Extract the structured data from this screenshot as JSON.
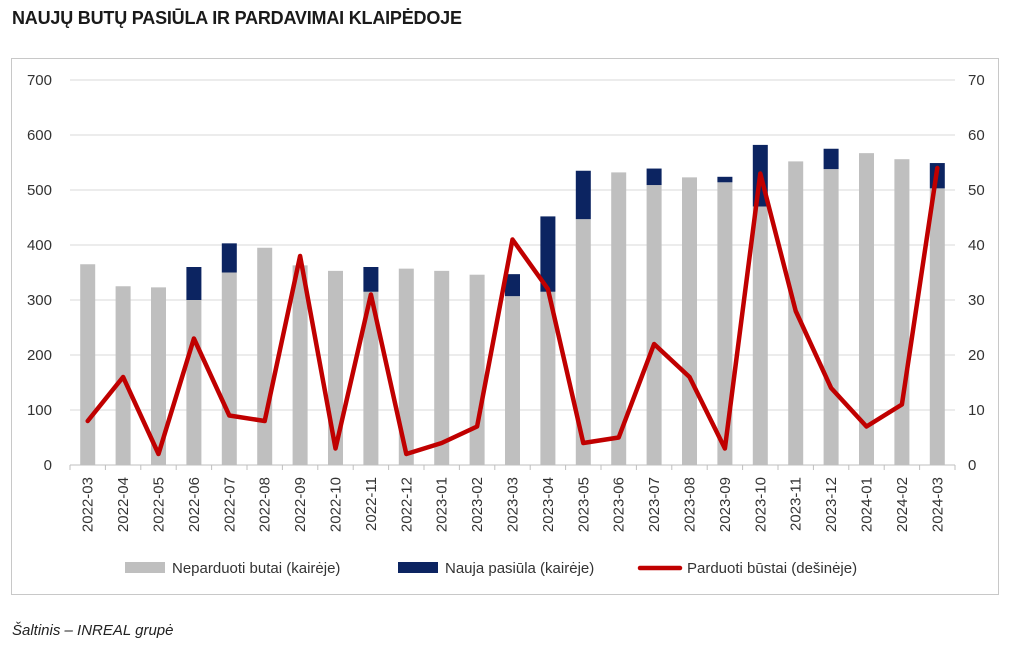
{
  "title": "NAUJŲ BUTŲ PASIŪLA IR PARDAVIMAI KLAIPĖDOJE",
  "source": "Šaltinis – INREAL grupė",
  "colors": {
    "unsold": "#bfbfbf",
    "new_supply": "#0c2461",
    "sold": "#c00000",
    "grid": "#d9d9d9"
  },
  "chart_data": {
    "type": "bar",
    "categories": [
      "2022-03",
      "2022-04",
      "2022-05",
      "2022-06",
      "2022-07",
      "2022-08",
      "2022-09",
      "2022-10",
      "2022-11",
      "2022-12",
      "2023-01",
      "2023-02",
      "2023-03",
      "2023-04",
      "2023-05",
      "2023-06",
      "2023-07",
      "2023-08",
      "2023-09",
      "2023-10",
      "2023-11",
      "2023-12",
      "2024-01",
      "2024-02",
      "2024-03"
    ],
    "series": [
      {
        "name": "Neparduoti butai (kairėje)",
        "type": "bar",
        "axis": "left",
        "values": [
          365,
          325,
          323,
          300,
          350,
          395,
          363,
          353,
          315,
          357,
          353,
          346,
          307,
          315,
          447,
          532,
          509,
          523,
          514,
          470,
          552,
          538,
          567,
          556,
          503
        ]
      },
      {
        "name": "Nauja pasiūla (kairėje)",
        "type": "bar-stacked",
        "axis": "left",
        "values": [
          0,
          0,
          0,
          60,
          53,
          0,
          0,
          0,
          45,
          0,
          0,
          0,
          40,
          137,
          88,
          0,
          30,
          0,
          10,
          112,
          0,
          37,
          0,
          0,
          46
        ]
      },
      {
        "name": "Parduoti būstai (dešinėje)",
        "type": "line",
        "axis": "right",
        "values": [
          8,
          16,
          2,
          23,
          9,
          8,
          38,
          3,
          31,
          2,
          4,
          7,
          41,
          32,
          4,
          5,
          22,
          16,
          3,
          53,
          28,
          14,
          7,
          11,
          54
        ]
      }
    ],
    "y_left": {
      "min": 0,
      "max": 700,
      "ticks": [
        "0",
        "100",
        "200",
        "300",
        "400",
        "500",
        "600",
        "700"
      ]
    },
    "y_right": {
      "min": 0,
      "max": 70,
      "ticks": [
        "0",
        "10",
        "20",
        "30",
        "40",
        "50",
        "60",
        "70"
      ]
    },
    "grid": true,
    "legend": "bottom"
  }
}
